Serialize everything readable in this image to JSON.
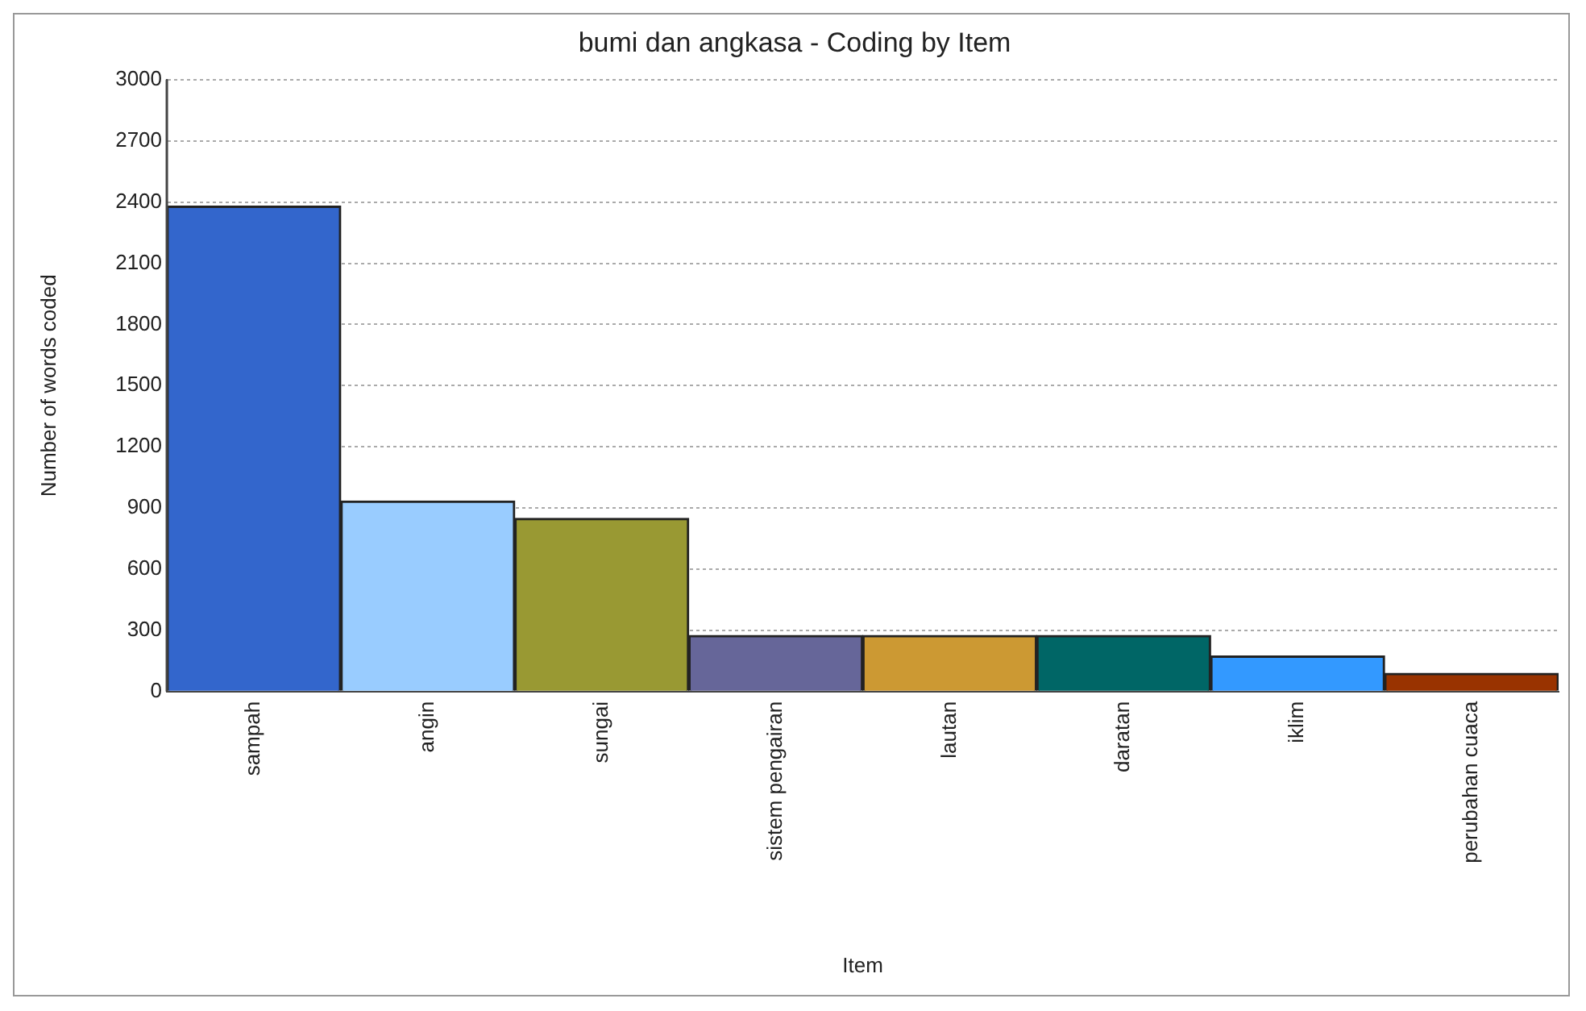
{
  "chart_data": {
    "type": "bar",
    "title": "bumi dan angkasa - Coding by Item",
    "xlabel": "Item",
    "ylabel": "Number of words coded",
    "categories": [
      "sampah",
      "angin",
      "sungai",
      "sistem pengairan",
      "lautan",
      "daratan",
      "iklim",
      "perubahan cuaca"
    ],
    "values": [
      2380,
      935,
      850,
      275,
      275,
      275,
      175,
      90
    ],
    "colors": [
      "#3366cc",
      "#99ccff",
      "#999933",
      "#666699",
      "#cc9933",
      "#006666",
      "#3399ff",
      "#993300"
    ],
    "ylim": [
      0,
      3000
    ],
    "yticks": [
      0,
      300,
      600,
      900,
      1200,
      1500,
      1800,
      2100,
      2400,
      2700,
      3000
    ],
    "grid": "y"
  }
}
